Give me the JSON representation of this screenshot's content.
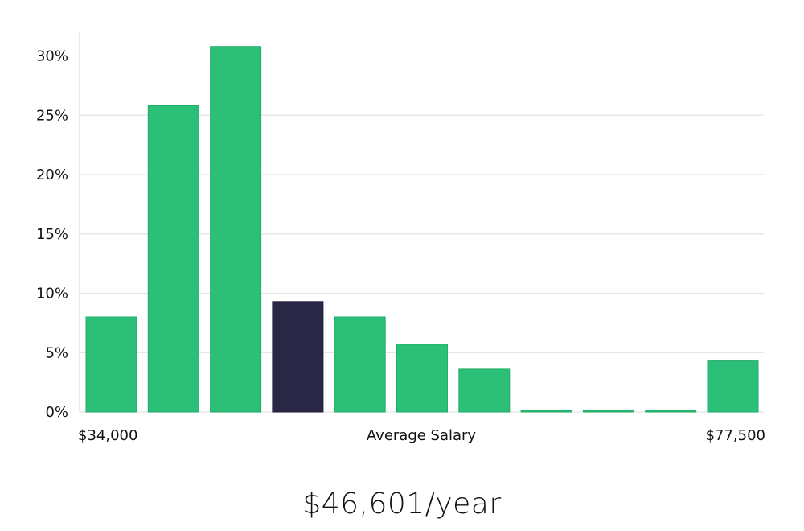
{
  "chart_data": {
    "type": "bar",
    "title": "",
    "ylabel": "",
    "xlabel": "Average Salary",
    "x_range_labels": {
      "min": "$34,000",
      "max": "$77,500"
    },
    "categories": [
      "",
      "",
      "",
      "",
      "",
      "",
      "",
      "",
      "",
      "",
      ""
    ],
    "values": [
      8.0,
      25.8,
      30.8,
      9.3,
      8.0,
      5.7,
      3.6,
      0.1,
      0.1,
      0.1,
      4.3
    ],
    "highlight_index": 3,
    "ylim": [
      0,
      32
    ],
    "yticks": [
      0,
      5,
      10,
      15,
      20,
      25,
      30
    ],
    "ytick_labels": [
      "0%",
      "5%",
      "10%",
      "15%",
      "20%",
      "25%",
      "30%"
    ],
    "grid": true,
    "colors": {
      "bar": "#2bbf77",
      "bar_edge": "#23ad69",
      "highlight": "#2a2747",
      "grid": "#e3e3e3",
      "axis": "#dddddd"
    }
  },
  "summary": {
    "average_salary": "$46,601/year"
  }
}
